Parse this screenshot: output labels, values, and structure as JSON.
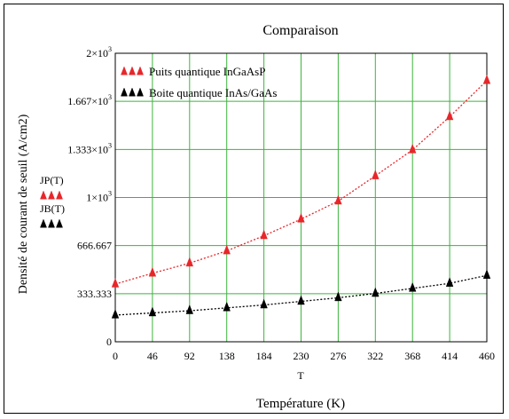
{
  "chart_data": {
    "type": "scatter",
    "title": "Comparaison",
    "xlabel": "Température (K)",
    "x_var_label": "T",
    "ylabel": "Densité de courant de seuil (A/cm2)",
    "xlim": [
      0,
      460
    ],
    "ylim": [
      0,
      2000
    ],
    "x_ticks": [
      0,
      46,
      92,
      138,
      184,
      230,
      276,
      322,
      368,
      414,
      460
    ],
    "x_tick_labels": [
      "0",
      "46",
      "92",
      "138",
      "184",
      "230",
      "276",
      "322",
      "368",
      "414",
      "460"
    ],
    "y_ticks": [
      0,
      333.333,
      666.667,
      1000,
      1333.333,
      1666.667,
      2000
    ],
    "y_tick_labels": [
      {
        "base": "0",
        "exp": ""
      },
      {
        "base": "333.333",
        "exp": ""
      },
      {
        "base": "666.667",
        "exp": ""
      },
      {
        "base": "1×10",
        "exp": "3"
      },
      {
        "base": "1.333×10",
        "exp": "3"
      },
      {
        "base": "1.667×10",
        "exp": "3"
      },
      {
        "base": "2×10",
        "exp": "3"
      }
    ],
    "grid": true,
    "legend_position": "top-left",
    "series": [
      {
        "name": "Puits quantique InGaAsP",
        "var_label": "JP(T)",
        "color": "#e8262a",
        "marker": "triangle",
        "x": [
          0,
          46,
          92,
          138,
          184,
          230,
          276,
          322,
          368,
          414,
          460
        ],
        "y": [
          400,
          475,
          545,
          630,
          735,
          850,
          975,
          1150,
          1330,
          1560,
          1810
        ]
      },
      {
        "name": "Boite quantique InAs/GaAs",
        "var_label": "JB(T)",
        "color": "#000000",
        "marker": "triangle",
        "x": [
          0,
          46,
          92,
          138,
          184,
          230,
          276,
          322,
          368,
          414,
          460
        ],
        "y": [
          185,
          200,
          215,
          235,
          255,
          280,
          305,
          335,
          370,
          405,
          460
        ]
      }
    ]
  }
}
